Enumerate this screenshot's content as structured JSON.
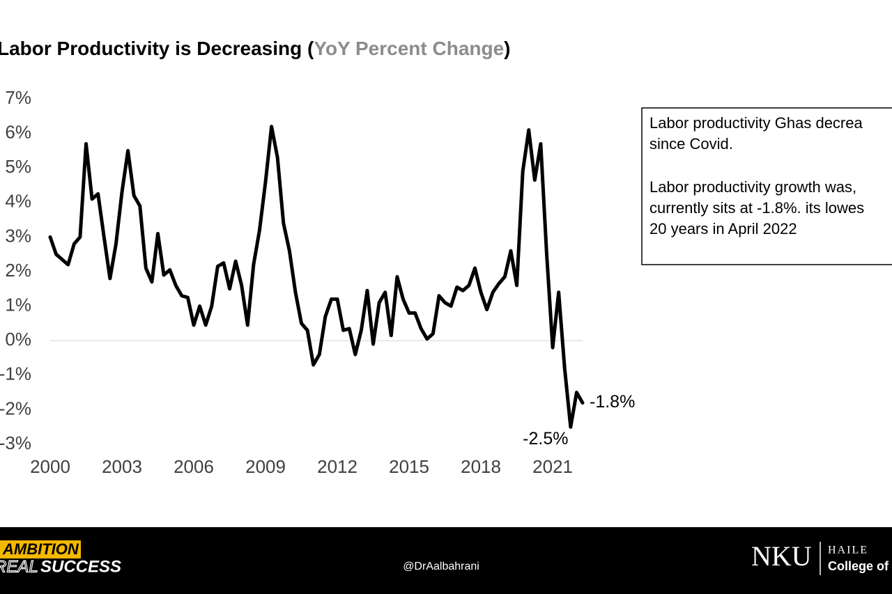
{
  "chart_data": {
    "type": "line",
    "title": [
      "Labor Productivity is Decreasing (",
      "YoY Percent Change",
      ")"
    ],
    "x": [
      2000,
      2000.25,
      2000.5,
      2000.75,
      2001,
      2001.25,
      2001.5,
      2001.75,
      2002,
      2002.25,
      2002.5,
      2002.75,
      2003,
      2003.25,
      2003.5,
      2003.75,
      2004,
      2004.25,
      2004.5,
      2004.75,
      2005,
      2005.25,
      2005.5,
      2005.75,
      2006,
      2006.25,
      2006.5,
      2006.75,
      2007,
      2007.25,
      2007.5,
      2007.75,
      2008,
      2008.25,
      2008.5,
      2008.75,
      2009,
      2009.25,
      2009.5,
      2009.75,
      2010,
      2010.25,
      2010.5,
      2010.75,
      2011,
      2011.25,
      2011.5,
      2011.75,
      2012,
      2012.25,
      2012.5,
      2012.75,
      2013,
      2013.25,
      2013.5,
      2013.75,
      2014,
      2014.25,
      2014.5,
      2014.75,
      2015,
      2015.25,
      2015.5,
      2015.75,
      2016,
      2016.25,
      2016.5,
      2016.75,
      2017,
      2017.25,
      2017.5,
      2017.75,
      2018,
      2018.25,
      2018.5,
      2018.75,
      2019,
      2019.25,
      2019.5,
      2019.75,
      2020,
      2020.25,
      2020.5,
      2020.75,
      2021,
      2021.25,
      2021.5,
      2021.75,
      2022,
      2022.25
    ],
    "series": [
      {
        "color": "#000000",
        "values": [
          3.0,
          2.5,
          2.35,
          2.2,
          2.8,
          3.0,
          5.7,
          4.1,
          4.25,
          3.0,
          1.8,
          2.8,
          4.3,
          5.5,
          4.2,
          3.9,
          2.1,
          1.7,
          3.1,
          1.9,
          2.05,
          1.6,
          1.3,
          1.25,
          0.45,
          1.0,
          0.45,
          1.0,
          2.15,
          2.25,
          1.5,
          2.3,
          1.6,
          0.45,
          2.2,
          3.2,
          4.6,
          6.2,
          5.3,
          3.4,
          2.6,
          1.4,
          0.5,
          0.3,
          -0.7,
          -0.4,
          0.7,
          1.2,
          1.2,
          0.3,
          0.35,
          -0.4,
          0.3,
          1.45,
          -0.1,
          1.1,
          1.4,
          0.15,
          1.85,
          1.2,
          0.8,
          0.8,
          0.35,
          0.05,
          0.2,
          1.3,
          1.1,
          1.0,
          1.55,
          1.45,
          1.6,
          2.1,
          1.4,
          0.9,
          1.4,
          1.65,
          1.85,
          2.6,
          1.6,
          4.9,
          6.1,
          4.65,
          5.7,
          2.5,
          -0.2,
          1.4,
          -0.8,
          -2.5,
          -1.5,
          -1.8
        ],
        "value_labels": [
          null,
          null,
          null,
          null,
          null,
          null,
          null,
          null,
          null,
          null,
          null,
          null,
          null,
          null,
          null,
          null,
          null,
          null,
          null,
          null,
          null,
          null,
          null,
          null,
          null,
          null,
          null,
          null,
          null,
          null,
          null,
          null,
          null,
          null,
          null,
          null,
          null,
          null,
          null,
          null,
          null,
          null,
          null,
          null,
          null,
          null,
          null,
          null,
          null,
          null,
          null,
          null,
          null,
          null,
          null,
          null,
          null,
          null,
          null,
          null,
          null,
          null,
          null,
          null,
          null,
          null,
          null,
          null,
          null,
          null,
          null,
          null,
          null,
          null,
          null,
          null,
          null,
          null,
          null,
          null,
          null,
          null,
          null,
          null,
          null,
          null,
          null,
          "-2.5%",
          null,
          "-1.8%"
        ]
      }
    ],
    "xlim": [
      2000,
      2022.25
    ],
    "xticks": [
      2000,
      2003,
      2006,
      2009,
      2012,
      2015,
      2018,
      2021
    ],
    "ylim": [
      -3,
      7
    ],
    "yticks": [
      {
        "value": -3,
        "label": "-3%"
      },
      {
        "value": -2,
        "label": "-2%"
      },
      {
        "value": -1,
        "label": "-1%"
      },
      {
        "value": 0,
        "label": "0%"
      },
      {
        "value": 1,
        "label": "1%"
      },
      {
        "value": 2,
        "label": "2%"
      },
      {
        "value": 3,
        "label": "3%"
      },
      {
        "value": 4,
        "label": "4%"
      },
      {
        "value": 5,
        "label": "5%"
      },
      {
        "value": 6,
        "label": "6%"
      },
      {
        "value": 7,
        "label": "7%"
      }
    ],
    "grid": false
  },
  "note": {
    "paragraphs": [
      [
        "Labor productivity Ghas decrea",
        "since Covid."
      ],
      [
        "Labor productivity growth was,",
        "currently sits at -1.8%. its lowes",
        "20 years in April 2022"
      ]
    ]
  },
  "footer": {
    "slogan": [
      "AMBITION",
      "REAL",
      "SUCCESS"
    ],
    "handle": "@DrAalbahrani",
    "logo": "NKU",
    "school": [
      "HAILE",
      "College of"
    ]
  }
}
